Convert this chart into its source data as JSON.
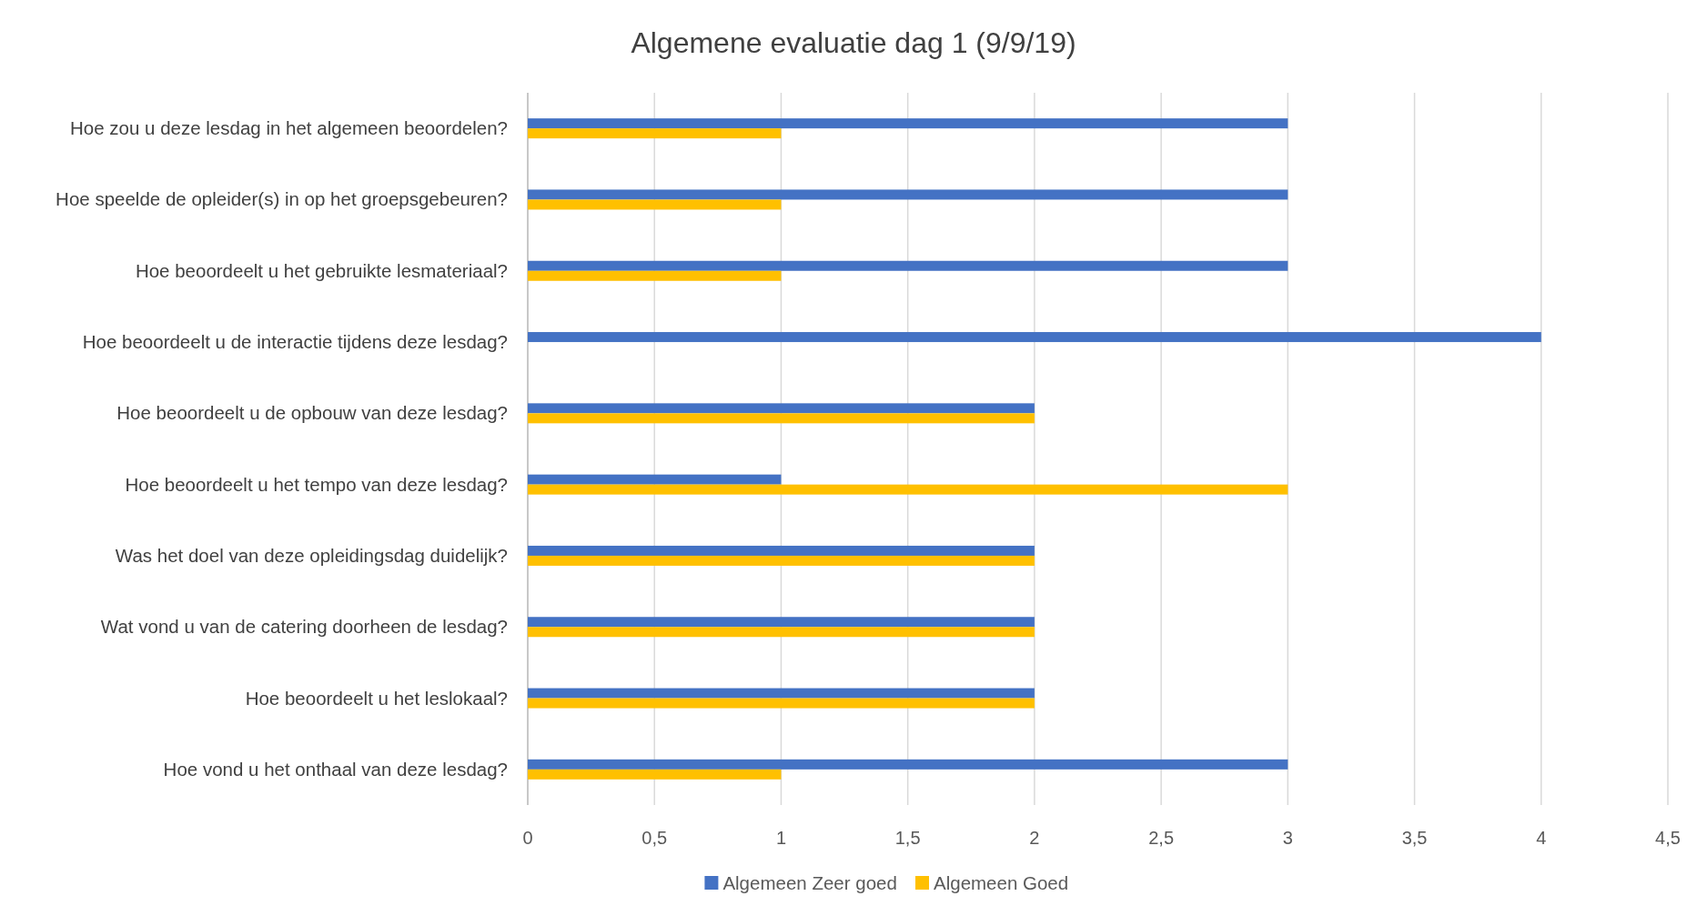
{
  "chart_data": {
    "type": "bar",
    "orientation": "horizontal",
    "title": "Algemene evaluatie dag 1 (9/9/19)",
    "categories": [
      "Hoe zou u deze lesdag in het algemeen beoordelen?",
      "Hoe speelde de opleider(s) in op het groepsgebeuren?",
      "Hoe beoordeelt u het gebruikte lesmateriaal?",
      "Hoe beoordeelt u de interactie tijdens deze lesdag?",
      "Hoe beoordeelt u de opbouw van deze lesdag?",
      "Hoe beoordeelt u het tempo van deze lesdag?",
      "Was het doel van deze opleidingsdag duidelijk?",
      "Wat vond u van de catering doorheen de lesdag?",
      "Hoe beoordeelt u het leslokaal?",
      "Hoe vond u het onthaal van deze lesdag?"
    ],
    "series": [
      {
        "name": "Algemeen Zeer goed",
        "color": "#4472c4",
        "values": [
          3,
          3,
          3,
          4,
          2,
          1,
          2,
          2,
          2,
          3
        ]
      },
      {
        "name": "Algemeen Goed",
        "color": "#ffc000",
        "values": [
          1,
          1,
          1,
          null,
          2,
          3,
          2,
          2,
          2,
          1
        ]
      }
    ],
    "xlim": [
      0,
      4.5
    ],
    "xticks": [
      0,
      {
        "value": 0.5,
        "label": "0,5"
      },
      1,
      {
        "value": 1.5,
        "label": "1,5"
      },
      2,
      {
        "value": 2.5,
        "label": "2,5"
      },
      3,
      {
        "value": 3.5,
        "label": "3,5"
      },
      4,
      {
        "value": 4.5,
        "label": "4,5"
      }
    ],
    "grid": "x",
    "legend": "bottom"
  }
}
